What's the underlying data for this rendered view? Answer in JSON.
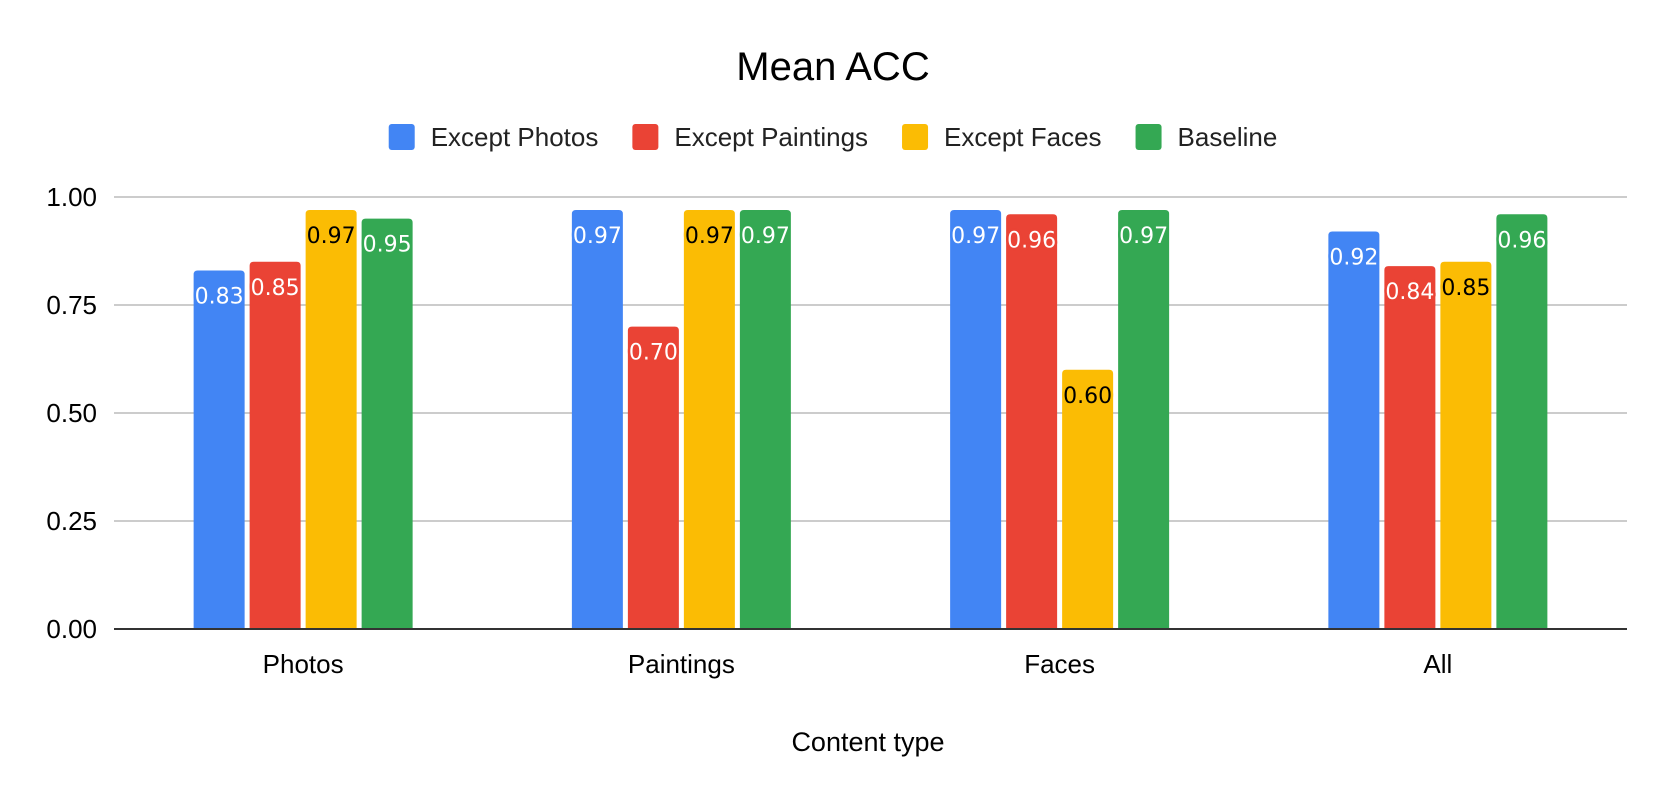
{
  "chart_data": {
    "type": "bar",
    "title": "Mean ACC",
    "xlabel": "Content type",
    "ylabel": "",
    "ylim": [
      0,
      1
    ],
    "yticks": [
      "0.00",
      "0.25",
      "0.50",
      "0.75",
      "1.00"
    ],
    "grid": true,
    "legend_position": "top",
    "categories": [
      "Photos",
      "Paintings",
      "Faces",
      "All"
    ],
    "series": [
      {
        "name": "Except Photos",
        "color": "#4285F4",
        "label_color": "#ffffff",
        "values": [
          0.83,
          0.97,
          0.97,
          0.92
        ],
        "labels": [
          "0.83",
          "0.97",
          "0.97",
          "0.92"
        ]
      },
      {
        "name": "Except Paintings",
        "color": "#EA4335",
        "label_color": "#ffffff",
        "values": [
          0.85,
          0.7,
          0.96,
          0.84
        ],
        "labels": [
          "0.85",
          "0.70",
          "0.96",
          "0.84"
        ]
      },
      {
        "name": "Except Faces",
        "color": "#FBBC04",
        "label_color": "#000000",
        "values": [
          0.97,
          0.97,
          0.6,
          0.85
        ],
        "labels": [
          "0.97",
          "0.97",
          "0.60",
          "0.85"
        ]
      },
      {
        "name": "Baseline",
        "color": "#34A853",
        "label_color": "#ffffff",
        "values": [
          0.95,
          0.97,
          0.97,
          0.96
        ],
        "labels": [
          "0.95",
          "0.97",
          "0.97",
          "0.96"
        ]
      }
    ]
  }
}
